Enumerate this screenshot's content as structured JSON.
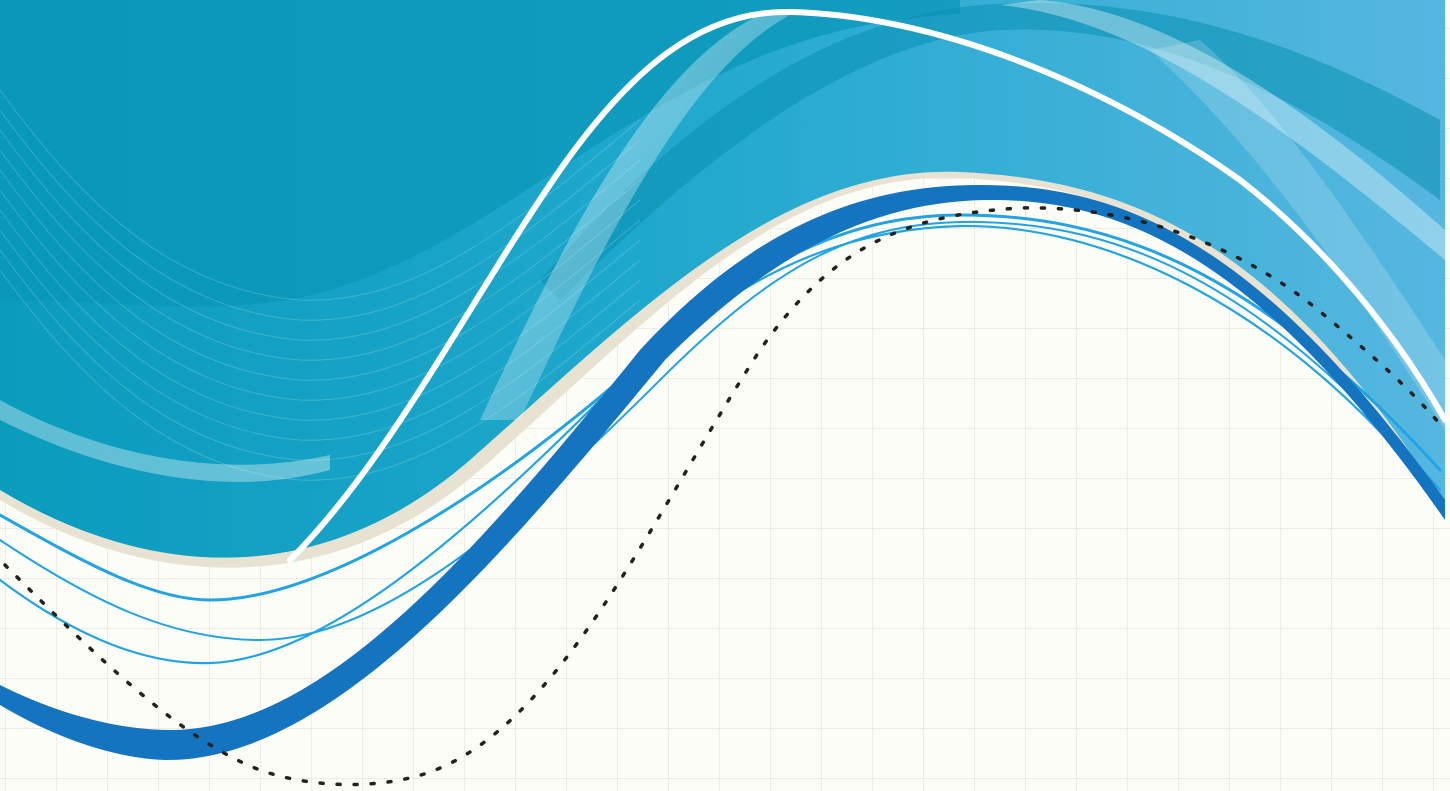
{
  "artwork": {
    "subject": "abstract-wave-background",
    "colors": {
      "paper": "#fdfdf8",
      "grid_line": "#e3e3dc",
      "deep_teal": "#0899bb",
      "mid_teal": "#1aa7cb",
      "sky_blue": "#52b5de",
      "ribbon_blue": "#1474c0",
      "thin_line_blue": "#22a4e4",
      "highlight_white": "#ffffff",
      "cream_edge": "#e8e2d2",
      "dotted_curve": "#222222"
    }
  }
}
